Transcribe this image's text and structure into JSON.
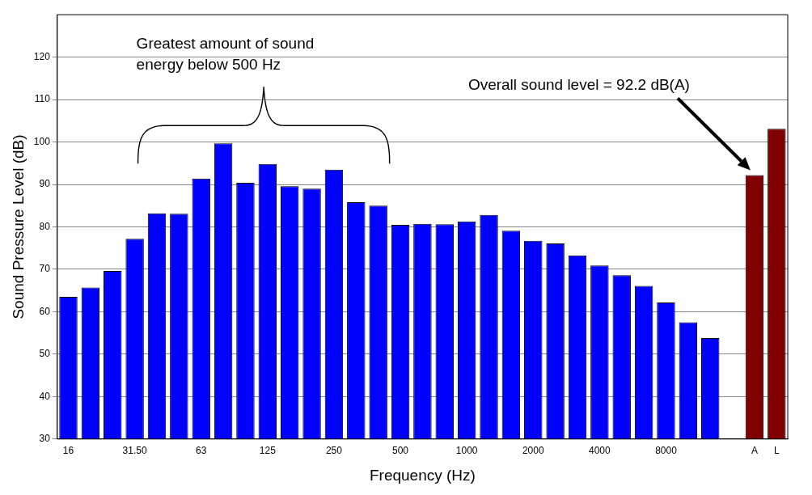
{
  "chart_data": {
    "type": "bar",
    "xlabel": "Frequency (Hz)",
    "ylabel": "Sound Pressure Level (dB)",
    "categories": [
      "16",
      null,
      null,
      "31.50",
      null,
      null,
      "63",
      null,
      null,
      "125",
      null,
      null,
      "250",
      null,
      null,
      "500",
      null,
      null,
      "1000",
      null,
      null,
      "2000",
      null,
      null,
      "4000",
      null,
      null,
      "8000",
      null,
      null,
      null,
      "A",
      "L"
    ],
    "values": [
      63.5,
      65.7,
      69.6,
      77.2,
      83.2,
      83.1,
      91.4,
      99.7,
      90.4,
      94.8,
      89.6,
      89.0,
      93.5,
      85.8,
      85.0,
      80.5,
      80.7,
      80.6,
      81.3,
      82.8,
      79.1,
      76.7,
      76.1,
      73.3,
      70.9,
      68.6,
      66.1,
      62.2,
      57.5,
      53.8,
      null,
      92.2,
      103.1
    ],
    "colors": [
      "#0000ff",
      "#0000ff",
      "#0000ff",
      "#0000ff",
      "#0000ff",
      "#0000ff",
      "#0000ff",
      "#0000ff",
      "#0000ff",
      "#0000ff",
      "#0000ff",
      "#0000ff",
      "#0000ff",
      "#0000ff",
      "#0000ff",
      "#0000ff",
      "#0000ff",
      "#0000ff",
      "#0000ff",
      "#0000ff",
      "#0000ff",
      "#0000ff",
      "#0000ff",
      "#0000ff",
      "#0000ff",
      "#0000ff",
      "#0000ff",
      "#0000ff",
      "#0000ff",
      "#0000ff",
      "#0000ff",
      "#800000",
      "#800000"
    ],
    "ylim": [
      30,
      130
    ],
    "yticks": [
      30,
      40,
      50,
      60,
      70,
      80,
      90,
      100,
      110,
      120
    ],
    "grid": "y",
    "annotations": [
      "Greatest amount of sound energy below 500 Hz",
      "Overall sound level = 92.2 dB(A)"
    ]
  }
}
